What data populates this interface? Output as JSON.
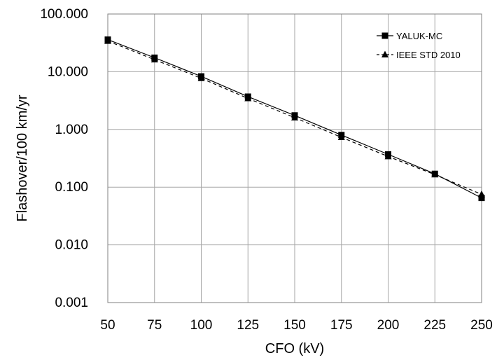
{
  "chart_data": {
    "type": "line",
    "xlabel": "CFO (kV)",
    "ylabel": "Flashover/100 km/yr",
    "x": [
      50,
      75,
      100,
      125,
      150,
      175,
      200,
      225,
      250
    ],
    "x_ticks": [
      "50",
      "75",
      "100",
      "125",
      "150",
      "175",
      "200",
      "225",
      "250"
    ],
    "xlim": [
      50,
      250
    ],
    "y_ticks": [
      "100.000",
      "10.000",
      "1.000",
      "0.100",
      "0.010",
      "0.001"
    ],
    "y_tick_values": [
      100,
      10,
      1,
      0.1,
      0.01,
      0.001
    ],
    "ylim": [
      0.001,
      100
    ],
    "y_scale": "log",
    "grid": true,
    "legend_position": "top-right",
    "series": [
      {
        "name": "YALUK-MC",
        "marker": "square",
        "line_style": "solid",
        "values": [
          36,
          17.5,
          8.3,
          3.7,
          1.75,
          0.8,
          0.37,
          0.17,
          0.065
        ]
      },
      {
        "name": "IEEE STD 2010",
        "marker": "triangle",
        "line_style": "dashed",
        "values": [
          34,
          16.2,
          7.7,
          3.45,
          1.6,
          0.73,
          0.34,
          0.165,
          0.075
        ]
      }
    ]
  }
}
